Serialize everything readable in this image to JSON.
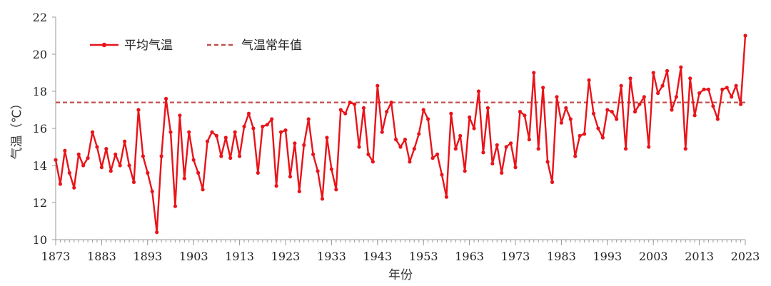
{
  "chart_data": {
    "type": "line",
    "xlabel": "年份",
    "ylabel": "气温（℃）",
    "xlim": [
      1873,
      2023
    ],
    "ylim": [
      10,
      22
    ],
    "yticks": [
      10,
      12,
      14,
      16,
      18,
      20,
      22
    ],
    "xticks": [
      1873,
      1883,
      1893,
      1903,
      1913,
      1923,
      1933,
      1943,
      1953,
      1963,
      1973,
      1983,
      1993,
      2003,
      2013,
      2023
    ],
    "grid": false,
    "legend_position": "top-left",
    "x": [
      1873,
      1874,
      1875,
      1876,
      1877,
      1878,
      1879,
      1880,
      1881,
      1882,
      1883,
      1884,
      1885,
      1886,
      1887,
      1888,
      1889,
      1890,
      1891,
      1892,
      1893,
      1894,
      1895,
      1896,
      1897,
      1898,
      1899,
      1900,
      1901,
      1902,
      1903,
      1904,
      1905,
      1906,
      1907,
      1908,
      1909,
      1910,
      1911,
      1912,
      1913,
      1914,
      1915,
      1916,
      1917,
      1918,
      1919,
      1920,
      1921,
      1922,
      1923,
      1924,
      1925,
      1926,
      1927,
      1928,
      1929,
      1930,
      1931,
      1932,
      1933,
      1934,
      1935,
      1936,
      1937,
      1938,
      1939,
      1940,
      1941,
      1942,
      1943,
      1944,
      1945,
      1946,
      1947,
      1948,
      1949,
      1950,
      1951,
      1952,
      1953,
      1954,
      1955,
      1956,
      1957,
      1958,
      1959,
      1960,
      1961,
      1962,
      1963,
      1964,
      1965,
      1966,
      1967,
      1968,
      1969,
      1970,
      1971,
      1972,
      1973,
      1974,
      1975,
      1976,
      1977,
      1978,
      1979,
      1980,
      1981,
      1982,
      1983,
      1984,
      1985,
      1986,
      1987,
      1988,
      1989,
      1990,
      1991,
      1992,
      1993,
      1994,
      1995,
      1996,
      1997,
      1998,
      1999,
      2000,
      2001,
      2002,
      2003,
      2004,
      2005,
      2006,
      2007,
      2008,
      2009,
      2010,
      2011,
      2012,
      2013,
      2014,
      2015,
      2016,
      2017,
      2018,
      2019,
      2020,
      2021,
      2022,
      2023
    ],
    "series": [
      {
        "name": "平均气温",
        "color": "#e8141a",
        "style": "solid-with-markers",
        "values": [
          14.3,
          13.0,
          14.8,
          13.6,
          12.8,
          14.6,
          14.0,
          14.4,
          15.8,
          15.0,
          13.9,
          14.9,
          13.7,
          14.6,
          14.0,
          15.3,
          14.0,
          13.1,
          17.0,
          14.5,
          13.6,
          12.6,
          10.4,
          14.5,
          17.6,
          15.8,
          11.8,
          16.7,
          13.3,
          15.8,
          14.3,
          13.6,
          12.7,
          15.3,
          15.8,
          15.6,
          14.5,
          15.5,
          14.4,
          15.8,
          14.5,
          16.1,
          16.8,
          16.0,
          13.6,
          16.1,
          16.2,
          16.5,
          12.9,
          15.8,
          15.9,
          13.4,
          15.2,
          12.6,
          15.1,
          16.5,
          14.6,
          13.7,
          12.2,
          15.5,
          13.8,
          12.7,
          17.0,
          16.8,
          17.4,
          17.3,
          15.0,
          17.1,
          14.6,
          14.2,
          18.3,
          15.8,
          16.9,
          17.4,
          15.4,
          15.0,
          15.4,
          14.2,
          14.9,
          15.7,
          17.0,
          16.5,
          14.4,
          14.6,
          13.5,
          12.3,
          16.8,
          14.9,
          15.6,
          13.7,
          16.6,
          16.0,
          18.0,
          14.7,
          17.1,
          14.1,
          15.1,
          13.6,
          15.0,
          15.2,
          13.9,
          16.9,
          16.7,
          15.4,
          19.0,
          14.9,
          18.2,
          14.2,
          13.1,
          17.7,
          16.3,
          17.1,
          16.5,
          14.5,
          15.6,
          15.7,
          18.6,
          16.8,
          16.0,
          15.5,
          17.0,
          16.9,
          16.5,
          18.3,
          14.9,
          18.7,
          16.9,
          17.3,
          17.7,
          15.0,
          19.0,
          17.9,
          18.3,
          19.1,
          17.0,
          17.7,
          19.3,
          14.9,
          18.7,
          16.7,
          17.9,
          18.1,
          18.1,
          17.2,
          16.5,
          18.1,
          18.2,
          17.7,
          18.3,
          17.3,
          21.0
        ]
      },
      {
        "name": "气温常年值",
        "color": "#c0504d",
        "style": "dashed",
        "constant": 17.4
      }
    ]
  }
}
